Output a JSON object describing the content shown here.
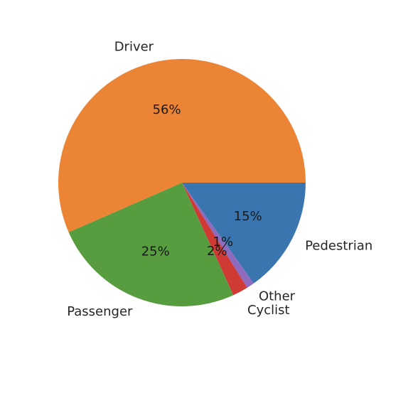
{
  "chart_data": {
    "type": "pie",
    "slices": [
      {
        "label": "Pedestrian",
        "value": 15,
        "pct_label": "15%",
        "color": "#3a75b0"
      },
      {
        "label": "Other",
        "value": 1,
        "pct_label": "1%",
        "color": "#8f6bbd"
      },
      {
        "label": "Cyclist",
        "value": 2,
        "pct_label": "2%",
        "color": "#cf3a35"
      },
      {
        "label": "Passenger",
        "value": 25,
        "pct_label": "25%",
        "color": "#579c3f"
      },
      {
        "label": "Driver",
        "value": 56,
        "pct_label": "56%",
        "color": "#ec8436"
      }
    ],
    "title": "",
    "start_angle_deg": 0,
    "direction": "clockwise"
  }
}
